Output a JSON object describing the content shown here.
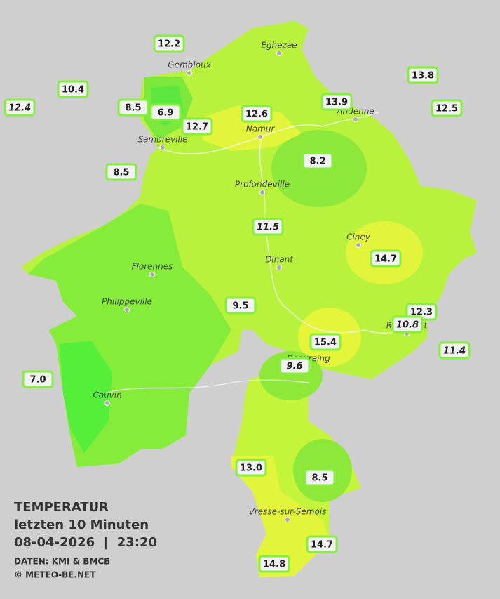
{
  "header": {
    "title": "TEMPERATUR",
    "subtitle": "letzten 10 Minuten",
    "datetime": "08-04-2026  |  23:20",
    "source": "DATEN: KMI & BMCB",
    "copyright": "© METEO-BE.NET"
  },
  "cities": [
    "Eghezee",
    "Gembloux",
    "Andenne",
    "Namur",
    "Sambreville",
    "Profondeville",
    "Ciney",
    "Dinant",
    "Florennes",
    "Philippeville",
    "Couvin",
    "Vresse-sur-Semois",
    "Beauraing",
    "Rochefort"
  ],
  "stations": [
    {
      "label": "12.2",
      "style": "normal"
    },
    {
      "label": "10.4",
      "style": "normal"
    },
    {
      "label": "12.4",
      "style": "italic"
    },
    {
      "label": "8.5",
      "style": "normal"
    },
    {
      "label": "6.9",
      "style": "normal"
    },
    {
      "label": "12.7",
      "style": "normal"
    },
    {
      "label": "12.6",
      "style": "normal"
    },
    {
      "label": "13.9",
      "style": "normal"
    },
    {
      "label": "13.8",
      "style": "normal"
    },
    {
      "label": "12.5",
      "style": "normal"
    },
    {
      "label": "8.5",
      "style": "normal"
    },
    {
      "label": "8.2",
      "style": "normal"
    },
    {
      "label": "11.5",
      "style": "italic"
    },
    {
      "label": "14.7",
      "style": "normal"
    },
    {
      "label": "9.5",
      "style": "normal"
    },
    {
      "label": "12.3",
      "style": "normal"
    },
    {
      "label": "10.8",
      "style": "italic"
    },
    {
      "label": "11.4",
      "style": "italic"
    },
    {
      "label": "15.4",
      "style": "normal"
    },
    {
      "label": "9.6",
      "style": "italic"
    },
    {
      "label": "7.0",
      "style": "normal"
    },
    {
      "label": "13.0",
      "style": "normal"
    },
    {
      "label": "8.5",
      "style": "normal"
    },
    {
      "label": "14.7",
      "style": "normal"
    },
    {
      "label": "14.8",
      "style": "normal"
    }
  ]
}
